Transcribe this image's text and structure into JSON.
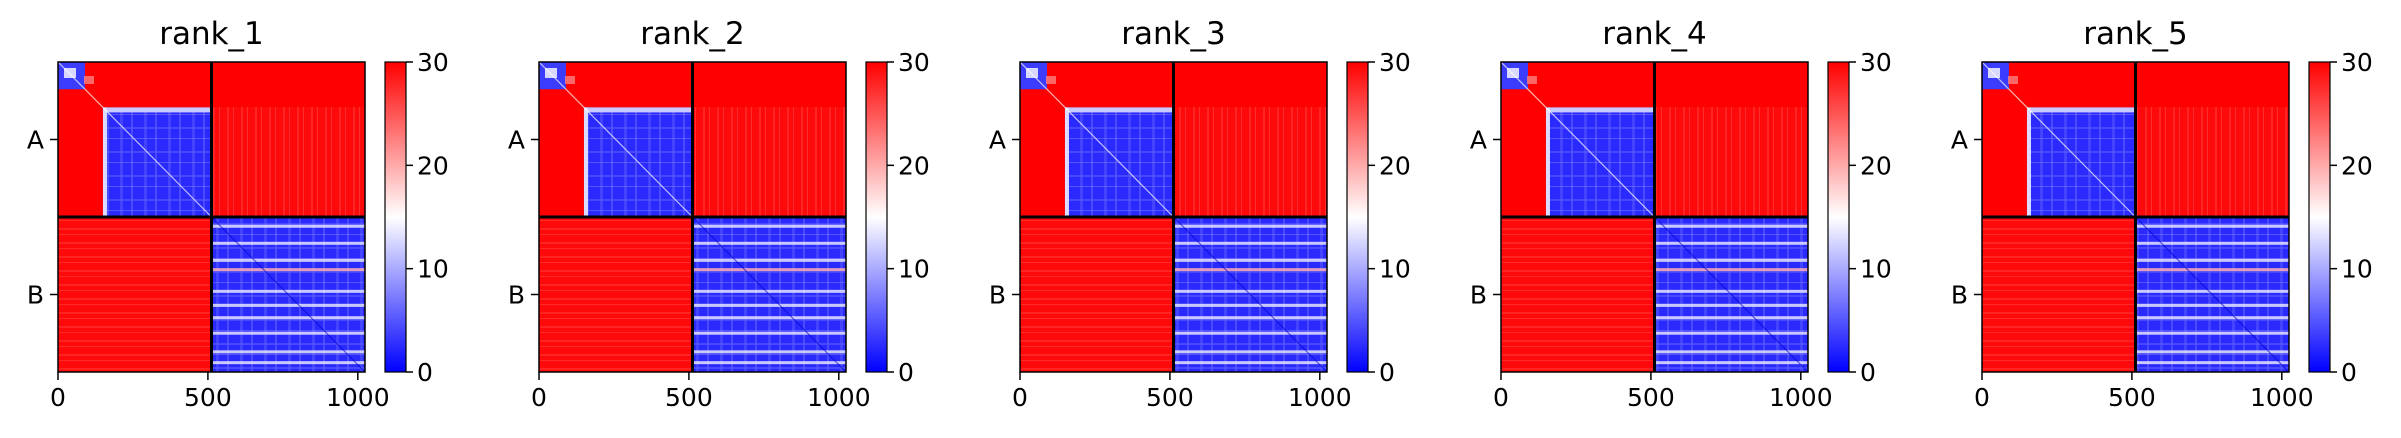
{
  "chart_data": {
    "type": "heatmap",
    "colormap": "bwr",
    "panels": [
      {
        "title": "rank_1"
      },
      {
        "title": "rank_2"
      },
      {
        "title": "rank_3"
      },
      {
        "title": "rank_4"
      },
      {
        "title": "rank_5"
      }
    ],
    "x_ticks": [
      "0",
      "500",
      "1000"
    ],
    "x_tick_values": [
      0,
      500,
      1000
    ],
    "y_tick_labels": [
      "A",
      "B"
    ],
    "chain_boundary": 512,
    "matrix_size": 1024,
    "colorbar": {
      "vmin": 0,
      "vmax": 30,
      "ticks": [
        "0",
        "10",
        "20",
        "30"
      ],
      "tick_values": [
        0,
        10,
        20,
        30
      ]
    },
    "blocks": {
      "A_A": "mostly low (blue) with a high-value (red) corner region for first ~150 residues",
      "A_B": "high (red)",
      "B_A": "high (red)",
      "B_B": "low (blue) with light streaks"
    }
  }
}
